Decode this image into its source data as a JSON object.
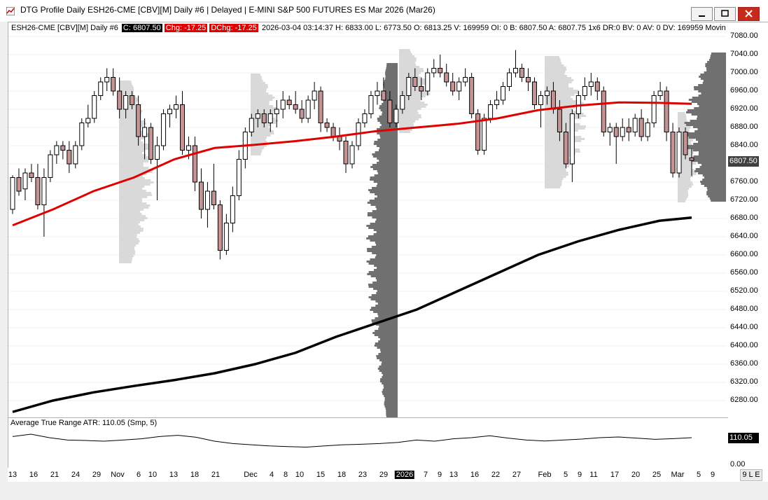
{
  "window": {
    "title": "DTG Profile Daily ESH26-CME [CBV][M]  Daily #6 | Delayed | E-MINI S&P 500 FUTURES ES Mar 2026 (Mar26)",
    "buttons": [
      "minimize",
      "maximize",
      "close"
    ]
  },
  "infobar": {
    "symbol": "ESH26-CME [CBV][M]  Daily #6",
    "close": "C: 6807.50",
    "chg": "Chg: -17.25",
    "dchg": "DChg: -17.25",
    "rest": "2026-03-04 03:14:37 H: 6833.00 L: 6773.50 O: 6813.25 V: 169959 OI: 0 B: 6807.50 A: 6807.75 1x6 DR:0 BV: 0 AV: 0 DV: 169959 Movin"
  },
  "price_tag": "6807.50",
  "atr": {
    "label": "Average True Range  ATR: 110.05  (Smp, 5)",
    "tag": "110.05",
    "axis_zero": "0.00"
  },
  "corner": "9 L E",
  "chart_data": {
    "type": "candlestick",
    "y_ticks": [
      "7080.00",
      "7040.00",
      "7000.00",
      "6960.00",
      "6920.00",
      "6880.00",
      "6840.00",
      "6800.00",
      "6760.00",
      "6720.00",
      "6680.00",
      "6640.00",
      "6600.00",
      "6560.00",
      "6520.00",
      "6480.00",
      "6440.00",
      "6400.00",
      "6360.00",
      "6320.00",
      "6280.00"
    ],
    "x_ticks": [
      {
        "label": "13"
      },
      {
        "label": "16"
      },
      {
        "label": "21"
      },
      {
        "label": "24"
      },
      {
        "label": "29"
      },
      {
        "label": "Nov"
      },
      {
        "label": "6"
      },
      {
        "label": "10"
      },
      {
        "label": "13"
      },
      {
        "label": "18"
      },
      {
        "label": "21"
      },
      {
        "label": "Dec"
      },
      {
        "label": "4"
      },
      {
        "label": "8"
      },
      {
        "label": "10"
      },
      {
        "label": "15"
      },
      {
        "label": "18"
      },
      {
        "label": "23"
      },
      {
        "label": "29"
      },
      {
        "label": "2026",
        "highlight": true
      },
      {
        "label": "7"
      },
      {
        "label": "9"
      },
      {
        "label": "13"
      },
      {
        "label": "16"
      },
      {
        "label": "22"
      },
      {
        "label": "27"
      },
      {
        "label": "Feb"
      },
      {
        "label": "5"
      },
      {
        "label": "9"
      },
      {
        "label": "11"
      },
      {
        "label": "17"
      },
      {
        "label": "20"
      },
      {
        "label": "25"
      },
      {
        "label": "Mar"
      },
      {
        "label": "5"
      },
      {
        "label": "9"
      }
    ],
    "ylim": [
      6250,
      7100
    ],
    "colors": {
      "up": "#ffffff",
      "down": "#c49494",
      "ma50": "#e00000",
      "ma200": "#000000",
      "profile_light": "#d9d9d9",
      "profile_dark": "#707070"
    },
    "candles": [
      [
        6700,
        6775,
        6690,
        6770
      ],
      [
        6770,
        6790,
        6730,
        6740
      ],
      [
        6745,
        6790,
        6720,
        6780
      ],
      [
        6780,
        6800,
        6760,
        6770
      ],
      [
        6770,
        6800,
        6700,
        6710
      ],
      [
        6710,
        6790,
        6640,
        6770
      ],
      [
        6770,
        6830,
        6760,
        6820
      ],
      [
        6820,
        6850,
        6800,
        6840
      ],
      [
        6840,
        6850,
        6810,
        6830
      ],
      [
        6830,
        6850,
        6780,
        6800
      ],
      [
        6800,
        6850,
        6790,
        6840
      ],
      [
        6840,
        6900,
        6830,
        6890
      ],
      [
        6890,
        6930,
        6880,
        6900
      ],
      [
        6900,
        6960,
        6890,
        6950
      ],
      [
        6950,
        6990,
        6940,
        6980
      ],
      [
        6980,
        7010,
        6960,
        6990
      ],
      [
        6990,
        7010,
        6950,
        6960
      ],
      [
        6960,
        6990,
        6900,
        6920
      ],
      [
        6920,
        6960,
        6900,
        6950
      ],
      [
        6950,
        6960,
        6920,
        6930
      ],
      [
        6930,
        6950,
        6840,
        6860
      ],
      [
        6860,
        6900,
        6810,
        6880
      ],
      [
        6880,
        6890,
        6800,
        6810
      ],
      [
        6810,
        6860,
        6720,
        6840
      ],
      [
        6840,
        6920,
        6830,
        6910
      ],
      [
        6910,
        6930,
        6880,
        6920
      ],
      [
        6920,
        6950,
        6900,
        6930
      ],
      [
        6930,
        6960,
        6820,
        6830
      ],
      [
        6830,
        6860,
        6810,
        6840
      ],
      [
        6840,
        6860,
        6740,
        6760
      ],
      [
        6760,
        6790,
        6680,
        6700
      ],
      [
        6700,
        6760,
        6660,
        6740
      ],
      [
        6740,
        6800,
        6700,
        6710
      ],
      [
        6710,
        6720,
        6590,
        6610
      ],
      [
        6610,
        6690,
        6600,
        6670
      ],
      [
        6670,
        6750,
        6650,
        6730
      ],
      [
        6730,
        6830,
        6720,
        6810
      ],
      [
        6810,
        6880,
        6790,
        6870
      ],
      [
        6870,
        6910,
        6860,
        6900
      ],
      [
        6900,
        6920,
        6880,
        6910
      ],
      [
        6910,
        6920,
        6880,
        6890
      ],
      [
        6890,
        6920,
        6870,
        6910
      ],
      [
        6910,
        6940,
        6880,
        6920
      ],
      [
        6920,
        6960,
        6900,
        6940
      ],
      [
        6940,
        6950,
        6920,
        6930
      ],
      [
        6930,
        6960,
        6910,
        6920
      ],
      [
        6920,
        6940,
        6890,
        6900
      ],
      [
        6900,
        6950,
        6890,
        6940
      ],
      [
        6940,
        6980,
        6920,
        6960
      ],
      [
        6960,
        6970,
        6870,
        6890
      ],
      [
        6890,
        6900,
        6870,
        6880
      ],
      [
        6880,
        6890,
        6850,
        6860
      ],
      [
        6860,
        6880,
        6830,
        6850
      ],
      [
        6850,
        6860,
        6780,
        6800
      ],
      [
        6800,
        6850,
        6790,
        6840
      ],
      [
        6840,
        6900,
        6830,
        6890
      ],
      [
        6890,
        6920,
        6880,
        6910
      ],
      [
        6910,
        6960,
        6900,
        6950
      ],
      [
        6950,
        6980,
        6930,
        6960
      ],
      [
        6960,
        6990,
        6940,
        6940
      ],
      [
        6940,
        6960,
        6880,
        6890
      ],
      [
        6890,
        6930,
        6880,
        6920
      ],
      [
        6920,
        6960,
        6910,
        6950
      ],
      [
        6950,
        7000,
        6940,
        6990
      ],
      [
        6990,
        7010,
        6960,
        6970
      ],
      [
        6970,
        6990,
        6940,
        6960
      ],
      [
        6960,
        7010,
        6950,
        7000
      ],
      [
        7000,
        7030,
        6990,
        7010
      ],
      [
        7010,
        7040,
        6990,
        7000
      ],
      [
        7000,
        7020,
        6970,
        6980
      ],
      [
        6980,
        7000,
        6950,
        6960
      ],
      [
        6960,
        6990,
        6940,
        6980
      ],
      [
        6980,
        7010,
        6970,
        6990
      ],
      [
        6990,
        7000,
        6900,
        6910
      ],
      [
        6910,
        6920,
        6820,
        6830
      ],
      [
        6830,
        6910,
        6820,
        6900
      ],
      [
        6900,
        6940,
        6890,
        6930
      ],
      [
        6930,
        6960,
        6920,
        6940
      ],
      [
        6940,
        6980,
        6930,
        6970
      ],
      [
        6970,
        7010,
        6960,
        7000
      ],
      [
        7000,
        7050,
        6990,
        7010
      ],
      [
        7010,
        7020,
        6980,
        6990
      ],
      [
        6990,
        7010,
        6960,
        6980
      ],
      [
        6980,
        6990,
        6920,
        6930
      ],
      [
        6930,
        6960,
        6880,
        6950
      ],
      [
        6950,
        6970,
        6930,
        6960
      ],
      [
        6960,
        6980,
        6910,
        6920
      ],
      [
        6920,
        6940,
        6850,
        6870
      ],
      [
        6870,
        6890,
        6790,
        6800
      ],
      [
        6800,
        6920,
        6760,
        6910
      ],
      [
        6910,
        6960,
        6900,
        6950
      ],
      [
        6950,
        6990,
        6940,
        6970
      ],
      [
        6970,
        7000,
        6950,
        6980
      ],
      [
        6980,
        6990,
        6940,
        6960
      ],
      [
        6960,
        6970,
        6860,
        6870
      ],
      [
        6870,
        6890,
        6840,
        6880
      ],
      [
        6880,
        6890,
        6800,
        6860
      ],
      [
        6860,
        6900,
        6850,
        6880
      ],
      [
        6880,
        6900,
        6850,
        6870
      ],
      [
        6870,
        6910,
        6860,
        6900
      ],
      [
        6900,
        6920,
        6850,
        6860
      ],
      [
        6860,
        6900,
        6850,
        6890
      ],
      [
        6890,
        6960,
        6880,
        6950
      ],
      [
        6950,
        6980,
        6940,
        6960
      ],
      [
        6960,
        6970,
        6850,
        6870
      ],
      [
        6870,
        6890,
        6770,
        6780
      ],
      [
        6780,
        6880,
        6770,
        6870
      ],
      [
        6870,
        6880,
        6810,
        6820
      ],
      [
        6813.25,
        6833,
        6773.5,
        6807.5
      ]
    ],
    "ma50": [
      [
        0,
        6665
      ],
      [
        10,
        6700
      ],
      [
        20,
        6740
      ],
      [
        30,
        6770
      ],
      [
        40,
        6810
      ],
      [
        50,
        6835
      ],
      [
        60,
        6842
      ],
      [
        70,
        6850
      ],
      [
        80,
        6860
      ],
      [
        90,
        6872
      ],
      [
        100,
        6880
      ],
      [
        110,
        6888
      ],
      [
        120,
        6900
      ],
      [
        130,
        6918
      ],
      [
        140,
        6928
      ],
      [
        150,
        6935
      ],
      [
        160,
        6934
      ],
      [
        168,
        6932
      ]
    ],
    "ma200": [
      [
        0,
        6255
      ],
      [
        10,
        6280
      ],
      [
        20,
        6298
      ],
      [
        30,
        6312
      ],
      [
        40,
        6325
      ],
      [
        50,
        6340
      ],
      [
        60,
        6360
      ],
      [
        70,
        6385
      ],
      [
        80,
        6420
      ],
      [
        90,
        6450
      ],
      [
        100,
        6480
      ],
      [
        110,
        6520
      ],
      [
        120,
        6560
      ],
      [
        130,
        6600
      ],
      [
        140,
        6630
      ],
      [
        150,
        6655
      ],
      [
        160,
        6675
      ],
      [
        168,
        6682
      ]
    ],
    "atr_series": [
      [
        0,
        115
      ],
      [
        4,
        125
      ],
      [
        8,
        110
      ],
      [
        12,
        100
      ],
      [
        16,
        98
      ],
      [
        20,
        95
      ],
      [
        24,
        100
      ],
      [
        28,
        105
      ],
      [
        32,
        115
      ],
      [
        36,
        120
      ],
      [
        40,
        112
      ],
      [
        44,
        95
      ],
      [
        48,
        85
      ],
      [
        52,
        80
      ],
      [
        56,
        75
      ],
      [
        60,
        72
      ],
      [
        64,
        70
      ],
      [
        68,
        75
      ],
      [
        72,
        80
      ],
      [
        76,
        82
      ],
      [
        80,
        85
      ],
      [
        84,
        90
      ],
      [
        88,
        100
      ],
      [
        92,
        95
      ],
      [
        96,
        105
      ],
      [
        100,
        110
      ],
      [
        104,
        118
      ],
      [
        108,
        108
      ],
      [
        112,
        100
      ],
      [
        116,
        96
      ],
      [
        120,
        100
      ],
      [
        124,
        104
      ],
      [
        128,
        110
      ],
      [
        132,
        113
      ],
      [
        136,
        108
      ],
      [
        140,
        103
      ],
      [
        144,
        106
      ],
      [
        148,
        110.05
      ]
    ]
  }
}
